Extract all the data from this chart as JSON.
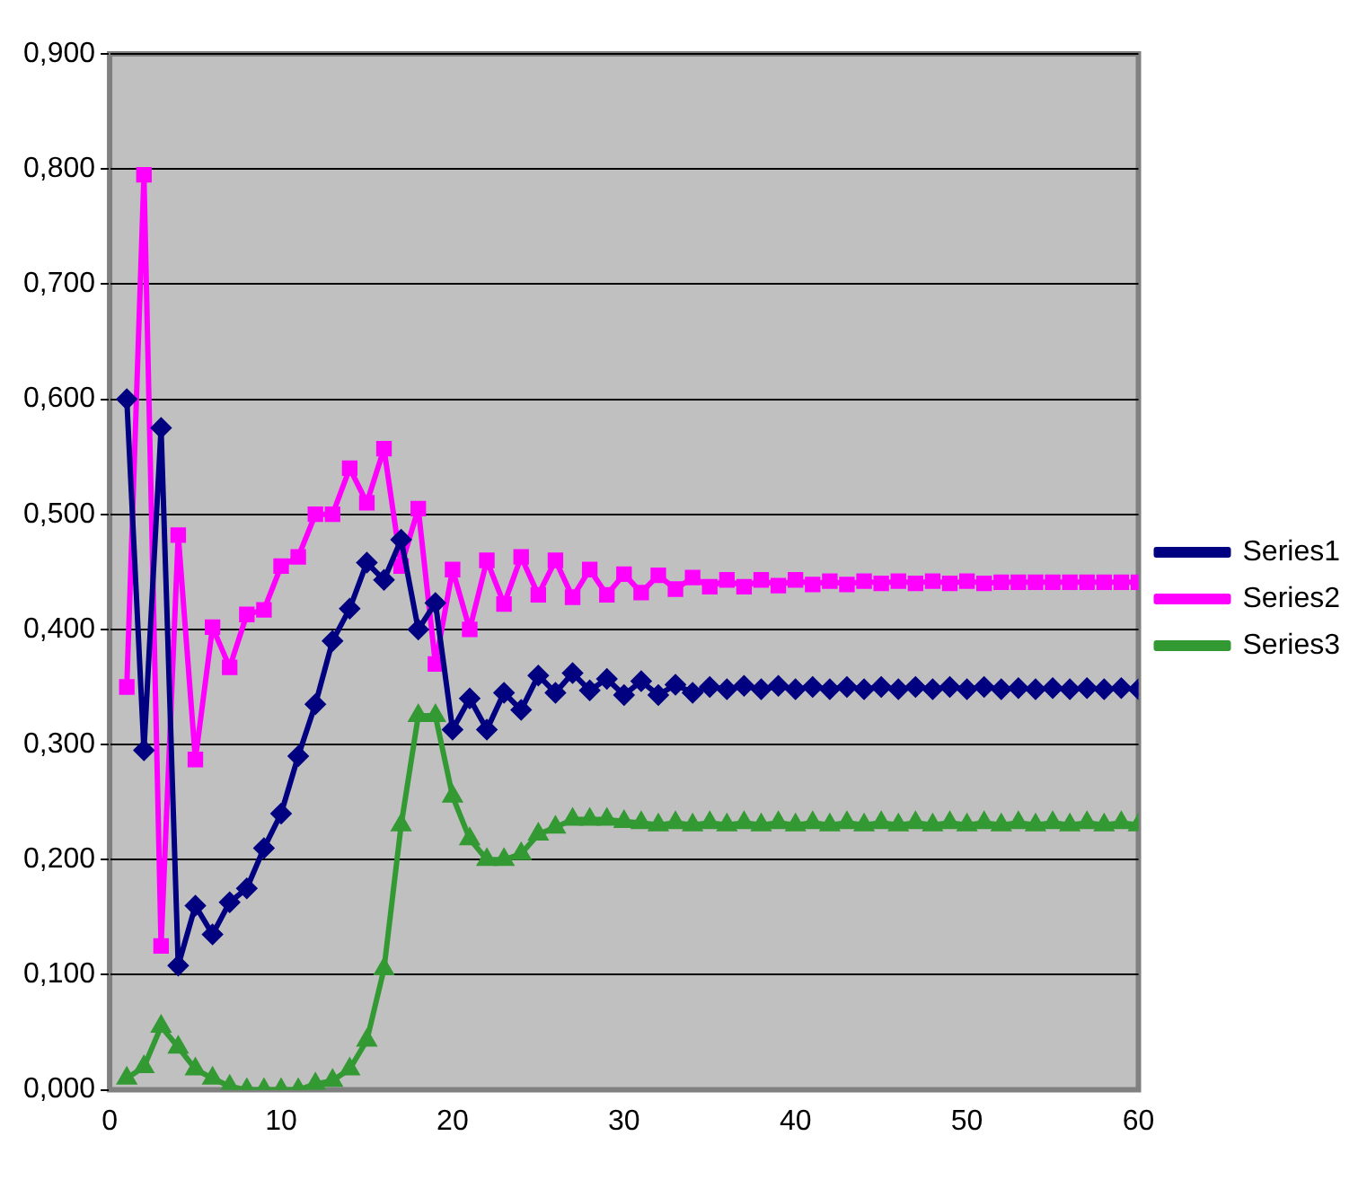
{
  "chart_data": {
    "type": "line",
    "x": [
      1,
      2,
      3,
      4,
      5,
      6,
      7,
      8,
      9,
      10,
      11,
      12,
      13,
      14,
      15,
      16,
      17,
      18,
      19,
      20,
      21,
      22,
      23,
      24,
      25,
      26,
      27,
      28,
      29,
      30,
      31,
      32,
      33,
      34,
      35,
      36,
      37,
      38,
      39,
      40,
      41,
      42,
      43,
      44,
      45,
      46,
      47,
      48,
      49,
      50,
      51,
      52,
      53,
      54,
      55,
      56,
      57,
      58,
      59,
      60
    ],
    "series": [
      {
        "name": "Series1",
        "color": "#000080",
        "marker": "diamond",
        "values": [
          0.6,
          0.295,
          0.575,
          0.108,
          0.16,
          0.135,
          0.163,
          0.175,
          0.21,
          0.24,
          0.29,
          0.335,
          0.39,
          0.418,
          0.458,
          0.443,
          0.478,
          0.4,
          0.423,
          0.313,
          0.34,
          0.313,
          0.345,
          0.33,
          0.36,
          0.345,
          0.362,
          0.347,
          0.357,
          0.343,
          0.355,
          0.343,
          0.352,
          0.345,
          0.35,
          0.348,
          0.351,
          0.348,
          0.351,
          0.348,
          0.35,
          0.348,
          0.35,
          0.348,
          0.35,
          0.348,
          0.35,
          0.348,
          0.35,
          0.348,
          0.35,
          0.348,
          0.349,
          0.348,
          0.349,
          0.348,
          0.349,
          0.348,
          0.349,
          0.348
        ]
      },
      {
        "name": "Series2",
        "color": "#ff00ff",
        "marker": "square",
        "values": [
          0.35,
          0.795,
          0.125,
          0.482,
          0.287,
          0.402,
          0.367,
          0.413,
          0.417,
          0.455,
          0.463,
          0.5,
          0.5,
          0.54,
          0.51,
          0.557,
          0.455,
          0.505,
          0.37,
          0.452,
          0.4,
          0.46,
          0.422,
          0.463,
          0.43,
          0.46,
          0.428,
          0.452,
          0.43,
          0.448,
          0.432,
          0.447,
          0.435,
          0.445,
          0.437,
          0.443,
          0.437,
          0.443,
          0.438,
          0.443,
          0.439,
          0.442,
          0.439,
          0.442,
          0.44,
          0.442,
          0.44,
          0.442,
          0.44,
          0.442,
          0.44,
          0.441,
          0.441,
          0.441,
          0.441,
          0.441,
          0.441,
          0.441,
          0.441,
          0.441
        ]
      },
      {
        "name": "Series3",
        "color": "#339933",
        "marker": "triangle",
        "values": [
          0.01,
          0.02,
          0.055,
          0.037,
          0.018,
          0.01,
          0.003,
          0.0,
          0.0,
          0.0,
          0.0,
          0.005,
          0.008,
          0.018,
          0.043,
          0.105,
          0.23,
          0.325,
          0.325,
          0.255,
          0.218,
          0.2,
          0.2,
          0.205,
          0.222,
          0.228,
          0.235,
          0.235,
          0.235,
          0.233,
          0.232,
          0.23,
          0.232,
          0.23,
          0.232,
          0.23,
          0.232,
          0.23,
          0.232,
          0.23,
          0.232,
          0.23,
          0.232,
          0.23,
          0.232,
          0.23,
          0.232,
          0.23,
          0.232,
          0.23,
          0.232,
          0.23,
          0.232,
          0.23,
          0.232,
          0.23,
          0.232,
          0.23,
          0.232,
          0.23
        ]
      }
    ],
    "xlim": [
      0,
      60
    ],
    "xticks": [
      0,
      10,
      20,
      30,
      40,
      50,
      60
    ],
    "ylim": [
      0,
      0.9
    ],
    "yticks": [
      {
        "value": 0,
        "label": "0,000"
      },
      {
        "value": 0.1,
        "label": "0,100"
      },
      {
        "value": 0.2,
        "label": "0,200"
      },
      {
        "value": 0.3,
        "label": "0,300"
      },
      {
        "value": 0.4,
        "label": "0,400"
      },
      {
        "value": 0.5,
        "label": "0,500"
      },
      {
        "value": 0.6,
        "label": "0,600"
      },
      {
        "value": 0.7,
        "label": "0,700"
      },
      {
        "value": 0.8,
        "label": "0,800"
      },
      {
        "value": 0.9,
        "label": "0,900"
      }
    ],
    "grid": "y",
    "legend": "right"
  }
}
